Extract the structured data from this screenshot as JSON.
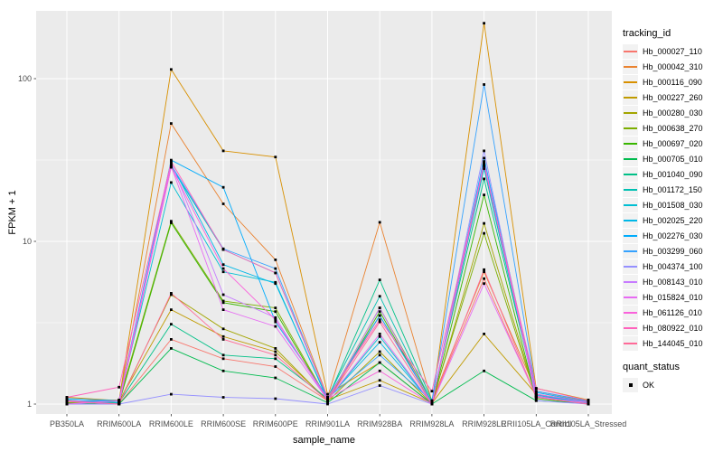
{
  "figure": {
    "y_axis": {
      "title": "FPKM + 1",
      "tick_labels": [
        "100",
        "10",
        "1"
      ],
      "tick_values": [
        100,
        10,
        1
      ],
      "minor_tick_values": [
        3.162,
        31.62
      ],
      "scale": "log10"
    },
    "x_axis": {
      "title": "sample_name"
    },
    "legend": {
      "tracking_title": "tracking_id",
      "quant_title": "quant_status",
      "quant_items": [
        {
          "label": "OK",
          "marker": "black-square"
        }
      ]
    },
    "colors": {
      "panel_bg": "#EBEBEB",
      "grid": "#FFFFFF",
      "tick_text": "#4D4D4D",
      "axis_text": "#000000",
      "point": "#000000",
      "legend_key_bg": "#F2F2F2"
    }
  },
  "chart_data": {
    "type": "line",
    "title": "",
    "xlabel": "sample_name",
    "ylabel": "FPKM + 1",
    "y_scale": "log10",
    "ylim": [
      1,
      280
    ],
    "grid": true,
    "legend_position": "right",
    "point_marker": "small black square (quant_status = OK)",
    "categories": [
      "PB350LA",
      "RRIM600LA",
      "RRIM600LE",
      "RRIM600SE",
      "RRIM600PE",
      "RRIM901LA",
      "RRIM928BA",
      "RRIM928LA",
      "RRIM928LE",
      "RRII105LA_Control",
      "RRII105LA_Stressed"
    ],
    "series": [
      {
        "name": "Hb_000027_110",
        "color": "#F8766D",
        "values": [
          1.06,
          1.0,
          2.5,
          1.9,
          1.7,
          1.05,
          3.5,
          1.02,
          5.9,
          1.1,
          1.02
        ]
      },
      {
        "name": "Hb_000042_310",
        "color": "#EA8331",
        "values": [
          1.04,
          1.06,
          53,
          17,
          7.7,
          1.1,
          13.1,
          1.04,
          6.5,
          1.2,
          1.04
        ]
      },
      {
        "name": "Hb_000116_090",
        "color": "#D89000",
        "values": [
          1.1,
          1.05,
          114,
          36,
          33,
          1.15,
          1.8,
          1.0,
          219,
          1.25,
          1.06
        ]
      },
      {
        "name": "Hb_000227_260",
        "color": "#C09B00",
        "values": [
          1.02,
          1.04,
          3.8,
          2.6,
          2.1,
          1.06,
          1.4,
          1.01,
          2.7,
          1.15,
          1.0
        ]
      },
      {
        "name": "Hb_000280_030",
        "color": "#A3A500",
        "values": [
          1.0,
          1.02,
          4.7,
          2.9,
          2.2,
          1.04,
          2.1,
          1.0,
          12.9,
          1.12,
          1.02
        ]
      },
      {
        "name": "Hb_000638_270",
        "color": "#7CAE00",
        "values": [
          1.02,
          1.05,
          13.3,
          4.3,
          3.9,
          1.06,
          3.9,
          1.03,
          11.2,
          1.1,
          1.04
        ]
      },
      {
        "name": "Hb_000697_020",
        "color": "#39B600",
        "values": [
          1.0,
          1.01,
          13.0,
          4.2,
          3.7,
          1.05,
          3.7,
          1.0,
          19.3,
          1.08,
          1.0
        ]
      },
      {
        "name": "Hb_000705_010",
        "color": "#00BB4E",
        "values": [
          1.01,
          1.0,
          2.2,
          1.6,
          1.45,
          1.02,
          1.8,
          1.0,
          1.6,
          1.05,
          1.01
        ]
      },
      {
        "name": "Hb_001040_090",
        "color": "#00C087",
        "values": [
          1.05,
          1.02,
          3.1,
          2.0,
          1.9,
          1.08,
          5.8,
          1.05,
          24.2,
          1.15,
          1.03
        ]
      },
      {
        "name": "Hb_001172_150",
        "color": "#00C0B2",
        "values": [
          1.06,
          1.0,
          28.8,
          8.9,
          6.4,
          1.1,
          4.6,
          1.02,
          28.0,
          1.12,
          1.02
        ]
      },
      {
        "name": "Hb_001508_030",
        "color": "#00BFD3",
        "values": [
          1.04,
          1.04,
          23.0,
          6.5,
          5.6,
          1.06,
          2.6,
          1.0,
          30.5,
          1.1,
          1.05
        ]
      },
      {
        "name": "Hb_002025_220",
        "color": "#00B8E7",
        "values": [
          1.05,
          1.02,
          30.0,
          7.2,
          5.5,
          1.08,
          2.4,
          1.01,
          29.0,
          1.14,
          1.02
        ]
      },
      {
        "name": "Hb_002276_030",
        "color": "#00ACFC",
        "values": [
          1.08,
          1.05,
          31.6,
          21.5,
          3.2,
          1.1,
          3.5,
          1.02,
          32.5,
          1.18,
          1.03
        ]
      },
      {
        "name": "Hb_003299_060",
        "color": "#35A2FF",
        "values": [
          1.05,
          1.04,
          29.5,
          9.0,
          6.8,
          1.09,
          2.0,
          1.05,
          92.0,
          1.2,
          1.05
        ]
      },
      {
        "name": "Hb_004374_100",
        "color": "#9590FF",
        "values": [
          1.0,
          1.0,
          1.15,
          1.1,
          1.08,
          1.0,
          1.3,
          1.0,
          36.0,
          1.05,
          1.0
        ]
      },
      {
        "name": "Hb_008143_010",
        "color": "#C77CFF",
        "values": [
          1.04,
          1.0,
          30.5,
          4.7,
          3.4,
          1.05,
          3.9,
          1.0,
          31.0,
          1.1,
          1.02
        ]
      },
      {
        "name": "Hb_015824_010",
        "color": "#E76BF3",
        "values": [
          1.0,
          1.05,
          29.0,
          3.8,
          3.0,
          1.06,
          2.7,
          1.0,
          5.5,
          1.12,
          1.0
        ]
      },
      {
        "name": "Hb_061126_010",
        "color": "#FA62DB",
        "values": [
          1.05,
          1.0,
          28.5,
          6.8,
          3.3,
          1.08,
          1.6,
          1.0,
          30.0,
          1.15,
          1.03
        ]
      },
      {
        "name": "Hb_080922_010",
        "color": "#FF62BC",
        "values": [
          1.1,
          1.27,
          31.0,
          8.9,
          6.4,
          1.1,
          3.3,
          1.2,
          29.5,
          1.25,
          1.05
        ]
      },
      {
        "name": "Hb_144045_010",
        "color": "#FF6A98",
        "values": [
          1.04,
          1.0,
          4.8,
          2.5,
          2.0,
          1.05,
          3.2,
          1.0,
          6.7,
          1.1,
          1.0
        ]
      }
    ]
  }
}
